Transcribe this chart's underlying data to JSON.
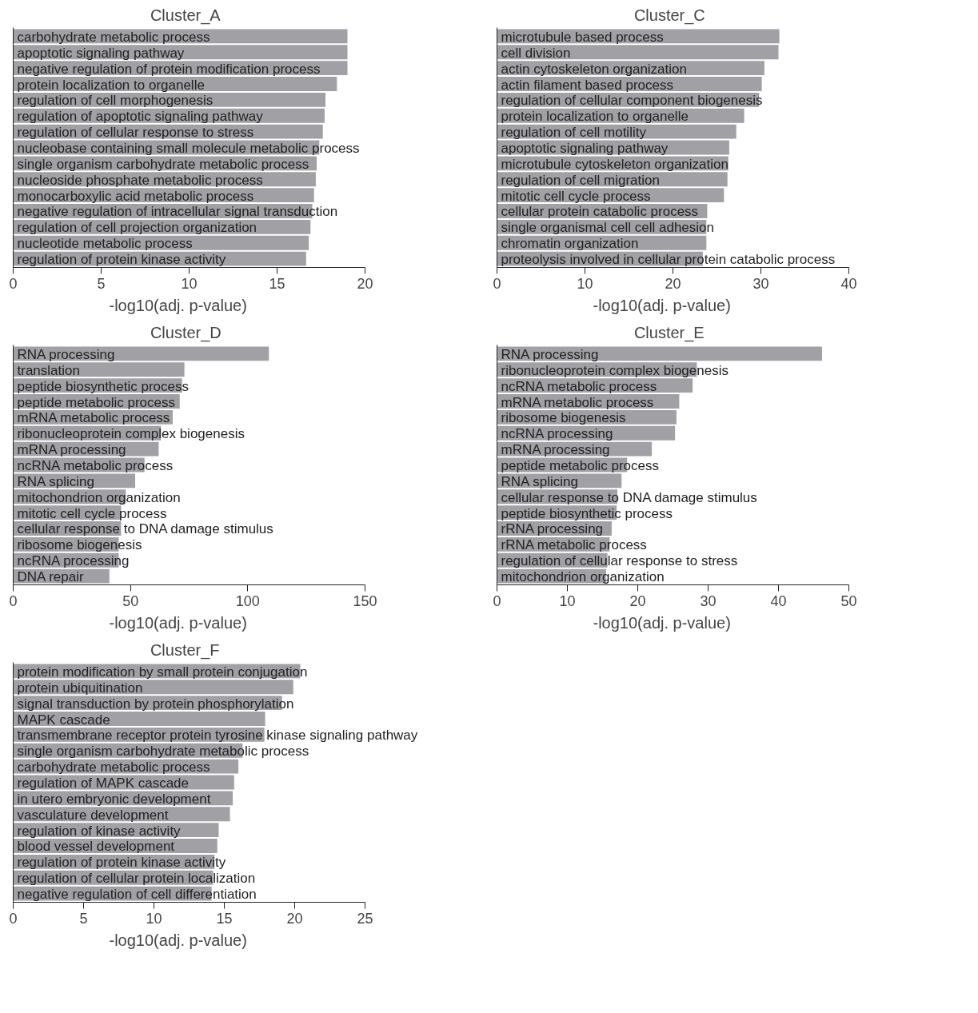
{
  "chart_data": [
    {
      "type": "bar",
      "orientation": "horizontal",
      "title": "Cluster_A",
      "xlabel": "-log10(adj. p-value)",
      "color": "#a0a0a5",
      "grid": false,
      "xlim": [
        0,
        20
      ],
      "xticks": [
        0,
        5,
        10,
        15,
        20
      ],
      "categories": [
        "carbohydrate metabolic process",
        "apoptotic signaling pathway",
        "negative regulation of protein modification process",
        "protein localization to organelle",
        "regulation of cell morphogenesis",
        "regulation of apoptotic signaling pathway",
        "regulation of cellular response to stress",
        "nucleobase containing small molecule metabolic process",
        "single organism carbohydrate metabolic process",
        "nucleoside phosphate metabolic process",
        "monocarboxylic acid metabolic process",
        "negative regulation of intracellular signal transduction",
        "regulation of cell projection organization",
        "nucleotide metabolic process",
        "regulation of protein kinase activity"
      ],
      "values": [
        19.0,
        19.0,
        19.0,
        18.4,
        17.75,
        17.7,
        17.6,
        17.4,
        17.25,
        17.2,
        17.1,
        17.0,
        16.9,
        16.8,
        16.65
      ]
    },
    {
      "type": "bar",
      "orientation": "horizontal",
      "title": "Cluster_C",
      "xlabel": "-log10(adj. p-value)",
      "color": "#a0a0a5",
      "grid": false,
      "xlim": [
        0,
        40
      ],
      "xticks": [
        0,
        10,
        20,
        30,
        40
      ],
      "categories": [
        "microtubule based process",
        "cell division",
        "actin cytoskeleton organization",
        "actin filament based process",
        "regulation of cellular component biogenesis",
        "protein localization to organelle",
        "regulation of cell motility",
        "apoptotic signaling pathway",
        "microtubule cytoskeleton organization",
        "regulation of cell migration",
        "mitotic cell cycle process",
        "cellular protein catabolic process",
        "single organismal cell cell adhesion",
        "chromatin organization",
        "proteolysis involved in cellular protein catabolic process"
      ],
      "values": [
        32.1,
        32.0,
        30.4,
        30.1,
        29.8,
        28.1,
        27.2,
        26.4,
        26.3,
        26.2,
        25.8,
        23.9,
        23.8,
        23.8,
        23.4
      ]
    },
    {
      "type": "bar",
      "orientation": "horizontal",
      "title": "Cluster_D",
      "xlabel": "-log10(adj. p-value)",
      "color": "#a0a0a5",
      "grid": false,
      "xlim": [
        0,
        150
      ],
      "xticks": [
        0,
        50,
        100,
        150
      ],
      "categories": [
        "RNA processing",
        "translation",
        "peptide biosynthetic process",
        "peptide metabolic process",
        "mRNA metabolic process",
        "ribonucleoprotein complex biogenesis",
        "mRNA processing",
        "ncRNA metabolic process",
        "RNA splicing",
        "mitochondrion organization",
        "mitotic cell cycle process",
        "cellular response to DNA damage stimulus",
        "ribosome biogenesis",
        "ncRNA processing",
        "DNA repair"
      ],
      "values": [
        109,
        73,
        72,
        71,
        68,
        63,
        62,
        56,
        52,
        48,
        46,
        46,
        45,
        45,
        41
      ]
    },
    {
      "type": "bar",
      "orientation": "horizontal",
      "title": "Cluster_E",
      "xlabel": "-log10(adj. p-value)",
      "color": "#a0a0a5",
      "grid": false,
      "xlim": [
        0,
        50
      ],
      "xticks": [
        0,
        10,
        20,
        30,
        40,
        50
      ],
      "categories": [
        "RNA processing",
        "ribonucleoprotein complex biogenesis",
        "ncRNA metabolic process",
        "mRNA metabolic process",
        "ribosome biogenesis",
        "ncRNA processing",
        "mRNA processing",
        "peptide metabolic process",
        "RNA splicing",
        "cellular response to DNA damage stimulus",
        "peptide biosynthetic process",
        "rRNA processing",
        "rRNA metabolic process",
        "regulation of cellular response to stress",
        "mitochondrion organization"
      ],
      "values": [
        46.2,
        28.4,
        27.8,
        25.9,
        25.5,
        25.3,
        22.0,
        18.5,
        17.7,
        17.1,
        17.0,
        16.3,
        16.0,
        15.7,
        15.5
      ]
    },
    {
      "type": "bar",
      "orientation": "horizontal",
      "title": "Cluster_F",
      "xlabel": "-log10(adj. p-value)",
      "color": "#a0a0a5",
      "grid": false,
      "xlim": [
        0,
        25
      ],
      "xticks": [
        0,
        5,
        10,
        15,
        20,
        25
      ],
      "categories": [
        "protein modification by small protein conjugation",
        "protein ubiquitination",
        "signal transduction by protein phosphorylation",
        "MAPK cascade",
        "transmembrane receptor protein tyrosine kinase signaling pathway",
        "single organism carbohydrate metabolic process",
        "carbohydrate metabolic process",
        "regulation of MAPK cascade",
        "in utero embryonic development",
        "vasculature development",
        "regulation of kinase activity",
        "blood vessel development",
        "regulation of protein kinase activity",
        "regulation of cellular protein localization",
        "negative regulation of cell differentiation"
      ],
      "values": [
        20.4,
        19.9,
        19.1,
        17.9,
        17.85,
        16.3,
        16.0,
        15.7,
        15.6,
        15.4,
        14.6,
        14.5,
        14.3,
        14.2,
        14.1
      ]
    }
  ]
}
